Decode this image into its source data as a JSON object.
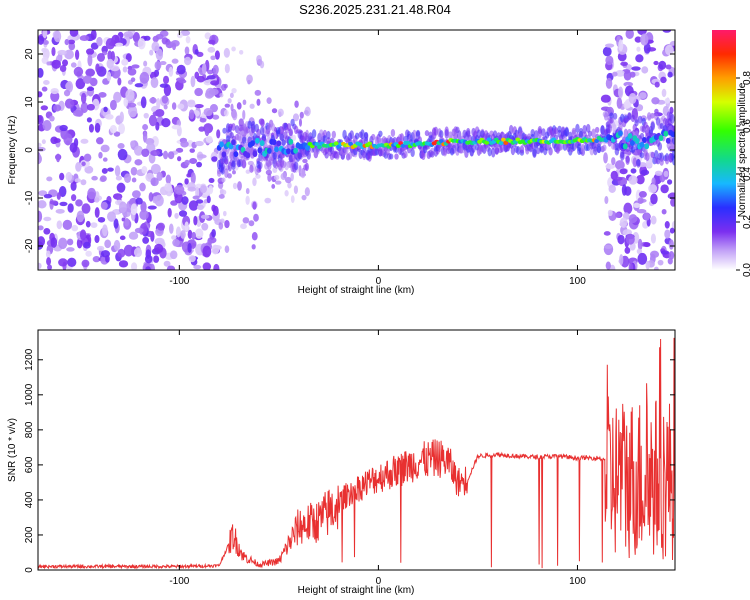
{
  "title": "S236.2025.231.21.48.R04",
  "colors": {
    "snr_line": "#e83030",
    "background": "#ffffff",
    "axis": "#000000"
  },
  "chart_data": [
    {
      "type": "heatmap",
      "title": "",
      "xlabel": "Height of straight line (km)",
      "ylabel": "Frequency (Hz)",
      "xlim": [
        -171,
        149
      ],
      "ylim": [
        -25,
        25
      ],
      "x_ticks": [
        -100,
        0,
        100
      ],
      "y_ticks": [
        -20,
        -10,
        0,
        10,
        20
      ],
      "colorbar": {
        "label": "Normalized spectral amplitude",
        "range": [
          0,
          1
        ],
        "ticks": [
          0.0,
          0.2,
          0.4,
          0.6,
          0.8
        ]
      },
      "ridge": {
        "x": [
          -80,
          -60,
          -40,
          -20,
          0,
          20,
          40,
          60,
          80,
          100,
          114
        ],
        "freq_hz": [
          0,
          0.5,
          1,
          1,
          1,
          1.2,
          1.8,
          1.8,
          1.8,
          2.0,
          2.2
        ]
      },
      "noise_regions": [
        {
          "x_from": -171,
          "x_to": -80,
          "description": "broadband noise"
        },
        {
          "x_from": 114,
          "x_to": 149,
          "description": "broadband noise"
        }
      ]
    },
    {
      "type": "line",
      "title": "",
      "xlabel": "Height of straight line (km)",
      "ylabel": "SNR (10 * v/v)",
      "xlim": [
        -171,
        149
      ],
      "ylim": [
        0,
        1370
      ],
      "x_ticks": [
        -100,
        0,
        100
      ],
      "y_ticks": [
        0,
        200,
        400,
        600,
        800,
        1000,
        1200
      ],
      "series": [
        {
          "name": "SNR",
          "x": [
            -171,
            -100,
            -80,
            -73,
            -71,
            -68,
            -60,
            -50,
            -40,
            -30,
            -20,
            -15,
            -10,
            0,
            10,
            20,
            30,
            35,
            40,
            45,
            50,
            60,
            70,
            80,
            90,
            100,
            110,
            114,
            117,
            125,
            135,
            149
          ],
          "y": [
            20,
            20,
            25,
            200,
            150,
            80,
            30,
            50,
            250,
            280,
            380,
            440,
            470,
            530,
            570,
            620,
            640,
            620,
            500,
            520,
            650,
            660,
            650,
            645,
            650,
            640,
            640,
            630,
            800,
            600,
            700,
            600
          ]
        }
      ]
    }
  ]
}
